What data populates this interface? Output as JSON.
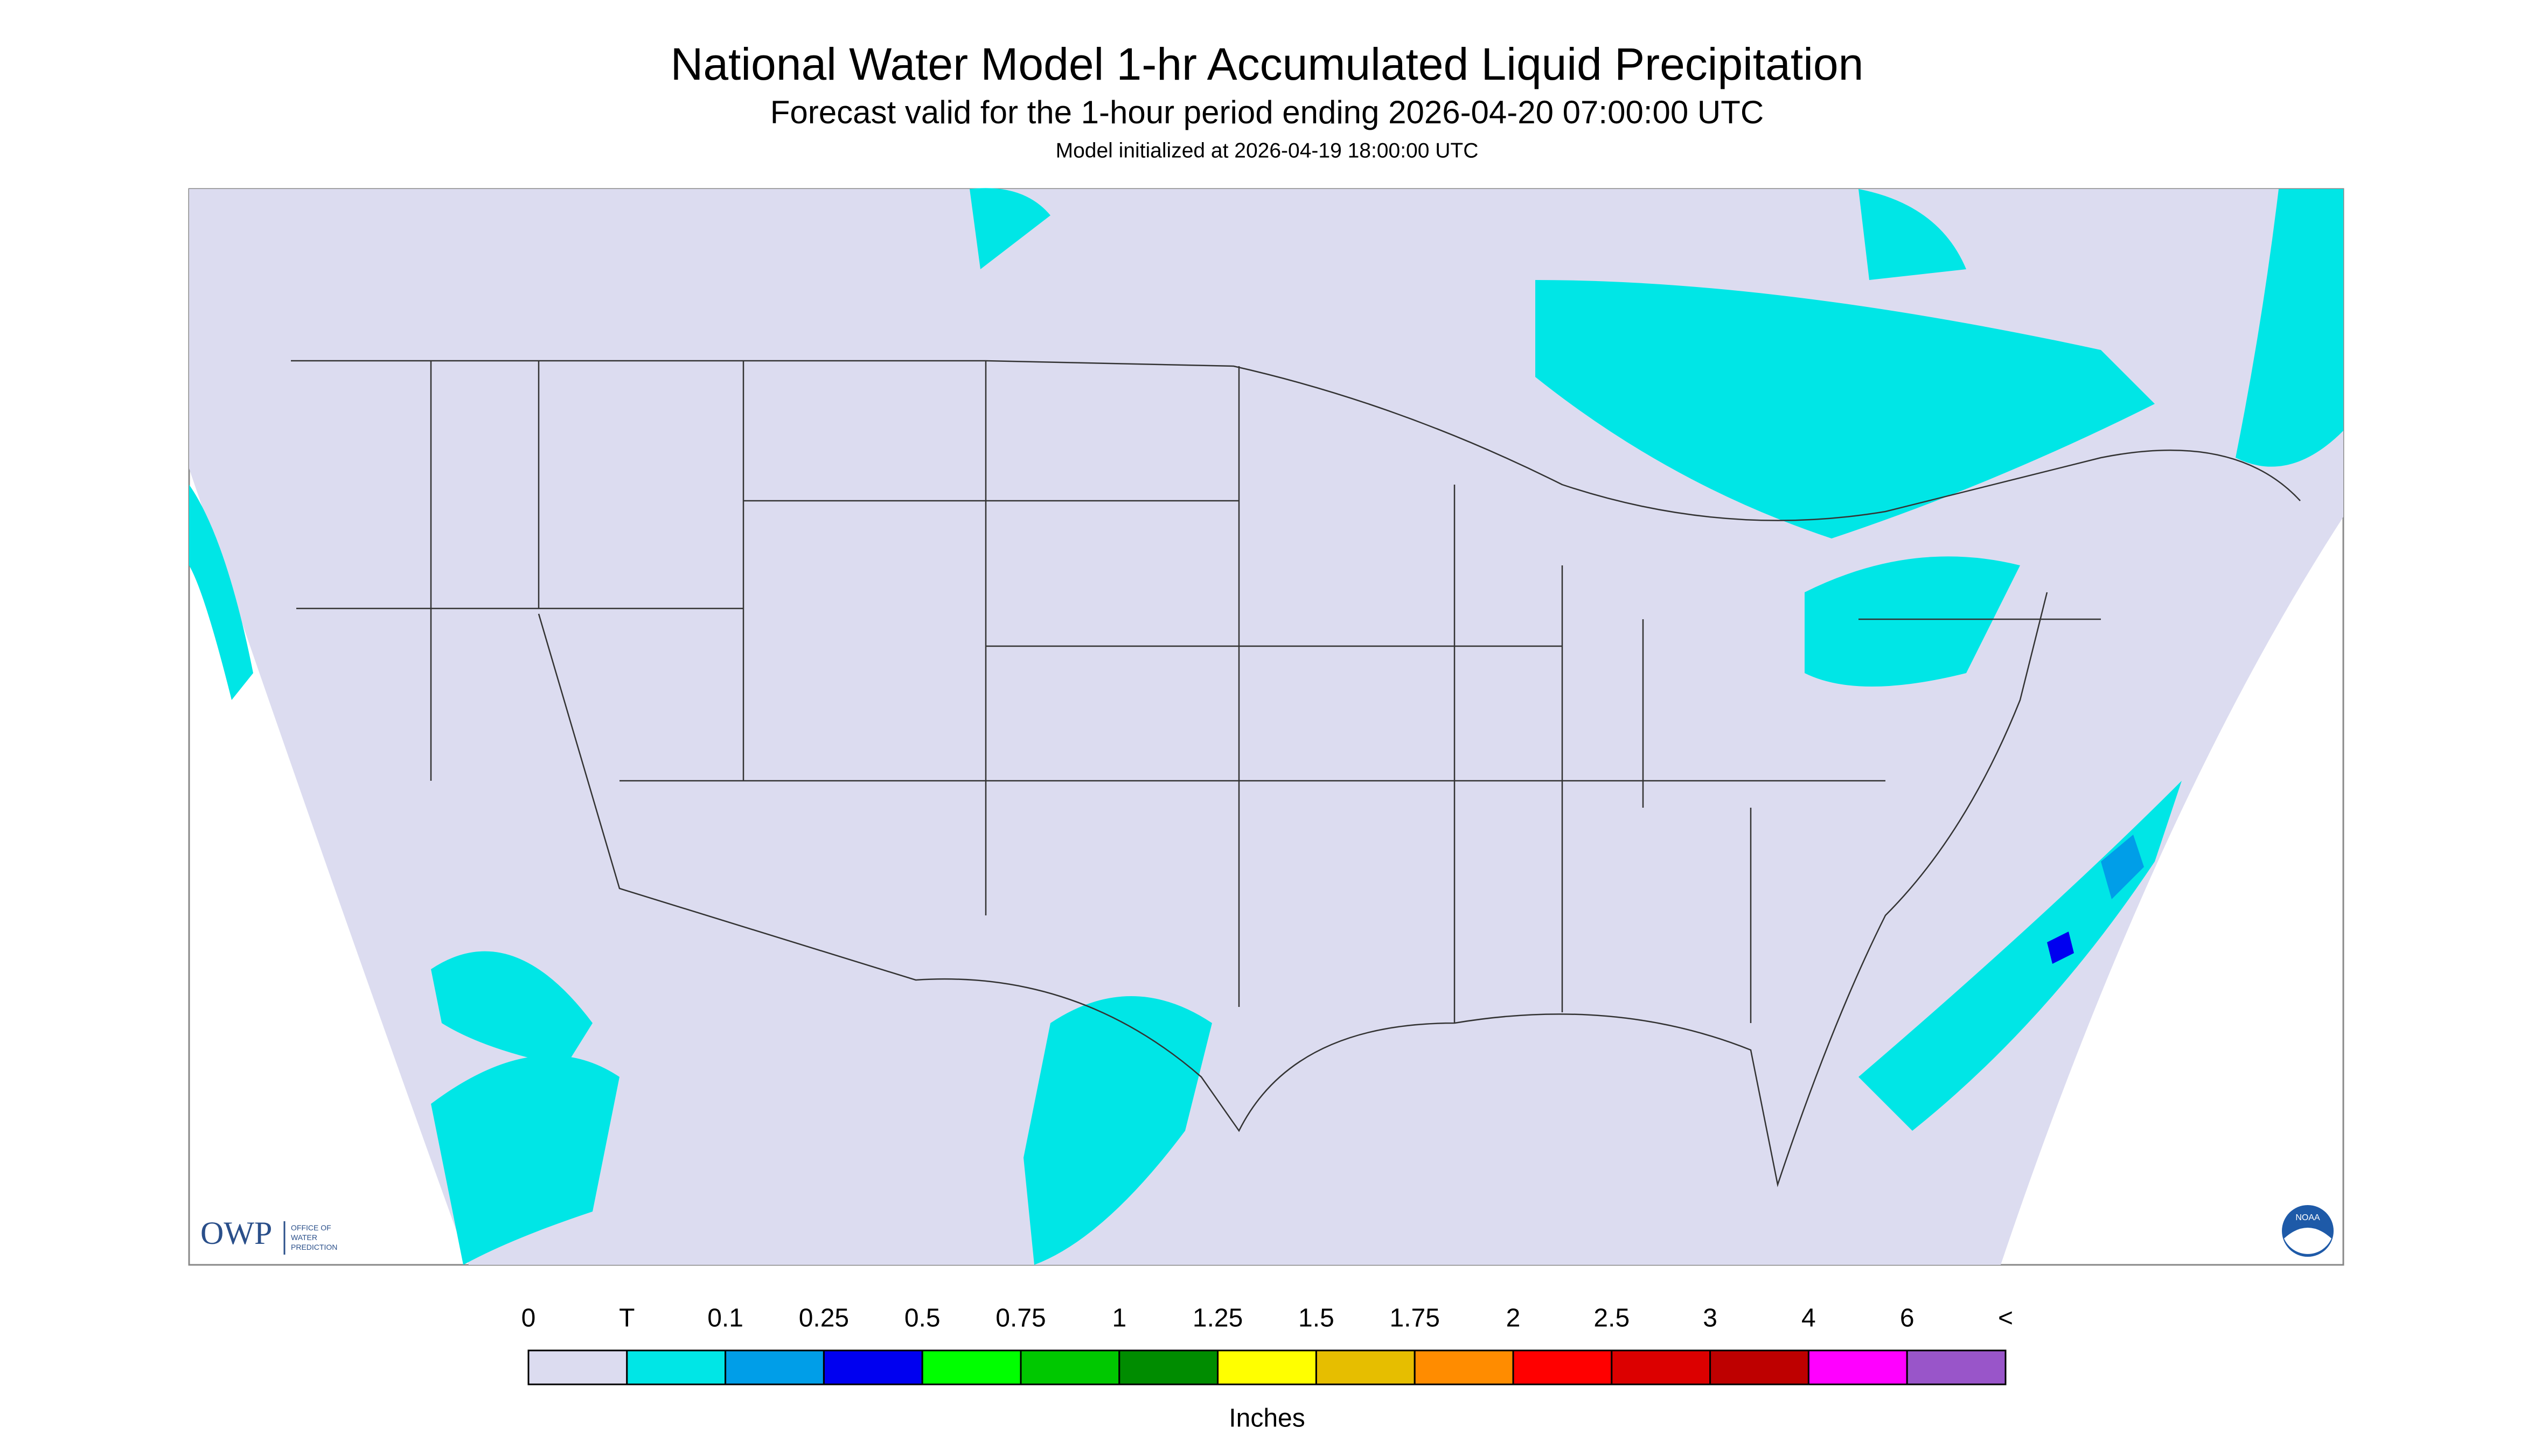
{
  "header": {
    "title": "National Water Model 1-hr Accumulated Liquid Precipitation",
    "subtitle": "Forecast valid for the 1-hour period ending 2026-04-20 07:00:00 UTC",
    "note": "Model initialized at 2026-04-19 18:00:00 UTC"
  },
  "logos": {
    "owp": "OWP",
    "owp_text": [
      "OFFICE OF",
      "WATER",
      "PREDICTION"
    ],
    "noaa": "NOAA"
  },
  "legend": {
    "labels": [
      "0",
      "T",
      "0.1",
      "0.25",
      "0.5",
      "0.75",
      "1",
      "1.25",
      "1.5",
      "1.75",
      "2",
      "2.5",
      "3",
      "4",
      "6",
      "<"
    ],
    "colors": [
      "#dcdcf0",
      "#00e6e6",
      "#009ee8",
      "#0000f0",
      "#00ff00",
      "#00c800",
      "#008c00",
      "#ffff00",
      "#e6be00",
      "#ff8c00",
      "#ff0000",
      "#dc0000",
      "#be0000",
      "#ff00ff",
      "#9955c9"
    ],
    "units": "Inches"
  }
}
